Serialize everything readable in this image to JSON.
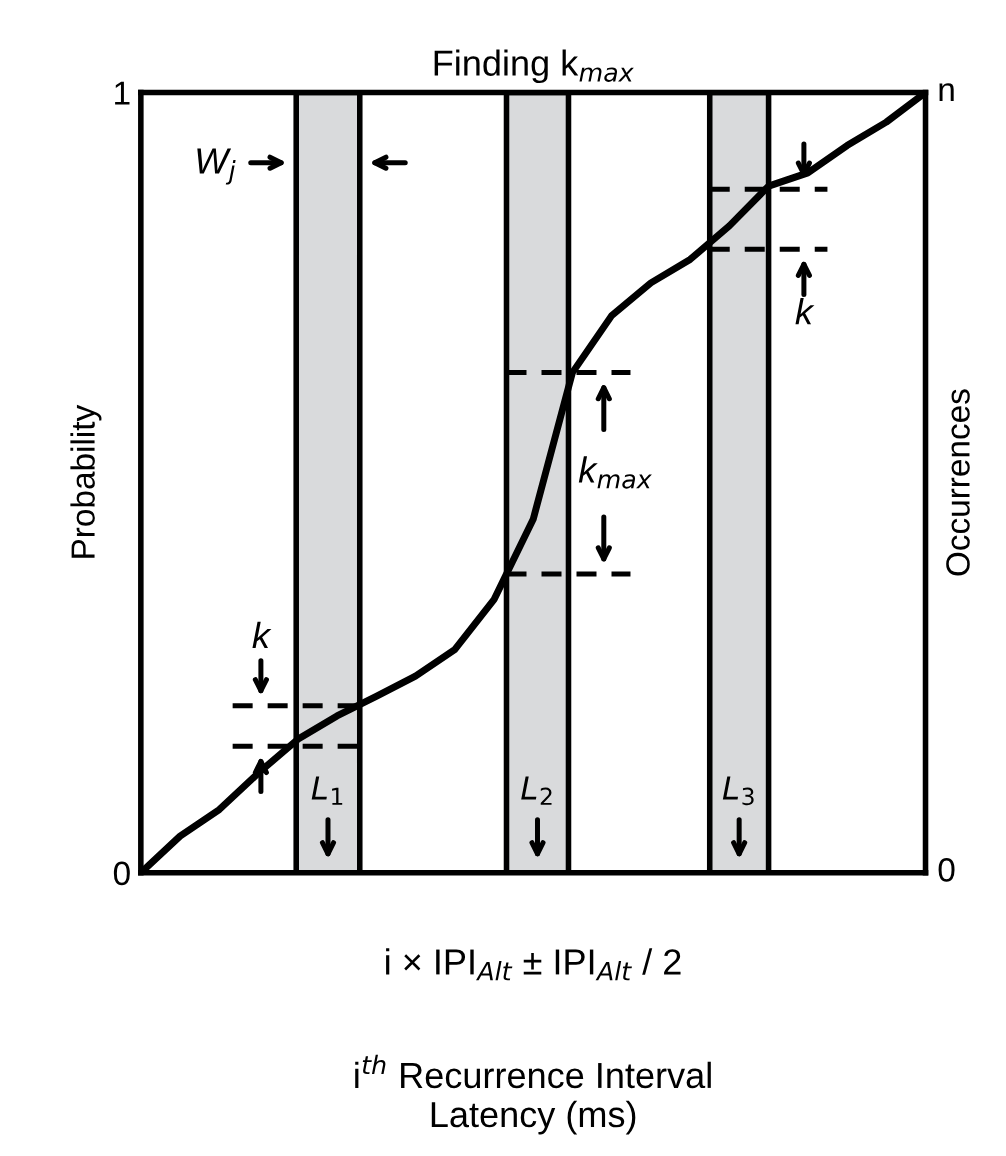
{
  "chart_data": {
    "type": "line",
    "title": "Finding k$_{max}$",
    "xlabel": "i$^{th}$ Recurrence Interval\nLatency (ms)",
    "ylabel": "Probability",
    "y2label": "Occurrences",
    "categories": [
      null,
      null,
      null,
      null,
      null,
      null,
      null,
      null,
      null,
      null,
      null,
      null,
      null,
      null,
      null,
      null,
      null,
      null,
      null,
      null,
      null
    ],
    "series": [
      {
        "color": "#000000",
        "values": [
          0.0,
          0.047,
          0.081,
          0.128,
          0.171,
          0.201,
          0.226,
          0.252,
          0.286,
          0.35,
          0.453,
          0.641,
          0.714,
          0.756,
          0.786,
          0.829,
          0.88,
          0.897,
          0.932,
          0.962,
          1.0
        ]
      }
    ],
    "ylim": [
      0,
      1
    ],
    "yticks": [
      0,
      1
    ],
    "ref_lines": [
      {
        "axis": "y",
        "value": 0.214,
        "line_style": "dashed"
      },
      {
        "axis": "y",
        "value": 0.162,
        "line_style": "dashed"
      },
      {
        "axis": "y",
        "value": 0.383,
        "line_style": "dashed"
      },
      {
        "axis": "y",
        "value": 0.641,
        "line_style": "dashed"
      },
      {
        "axis": "y",
        "value": 0.876,
        "line_style": "dashed"
      },
      {
        "axis": "y",
        "value": 0.799,
        "line_style": "dashed"
      }
    ],
    "annotations": [
      "W$_{j}$",
      "k",
      "k$_{max}$",
      "k",
      "i × IPI$_{Alt}$ ± IPI$_{Alt}$ / 2",
      "L$_{1}$",
      "L$_{2}$",
      "L$_{3}$",
      "0",
      "n"
    ],
    "line_style": "solid",
    "marker": "none",
    "grid": false,
    "legend": false
  }
}
